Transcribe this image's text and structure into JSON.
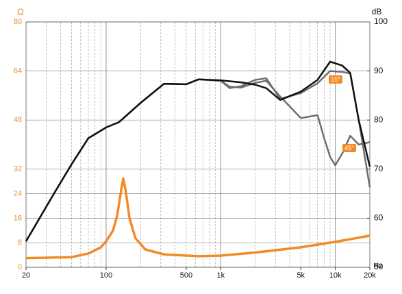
{
  "chart_data": {
    "type": "line",
    "x_label": "Hz",
    "y_label": "Ω",
    "y2_label": "dB",
    "xscale": "log",
    "xlim": [
      20,
      20000
    ],
    "xticks": [
      20,
      100,
      500,
      {
        "value": 1000,
        "label": "1k"
      },
      {
        "value": 5000,
        "label": "5k"
      },
      {
        "value": 10000,
        "label": "10k"
      },
      {
        "value": 20000,
        "label": "20k"
      }
    ],
    "ylim": [
      0,
      80
    ],
    "yticks": [
      0,
      8,
      16,
      24,
      32,
      48,
      64,
      80
    ],
    "y2lim": [
      50,
      100
    ],
    "y2ticks": [
      50,
      60,
      70,
      80,
      90,
      100
    ],
    "grid": true,
    "series": [
      {
        "color": "#f28a26",
        "axis": "y",
        "x": [
          20,
          50,
          70,
          90,
          100,
          115,
          125,
          135,
          141,
          148,
          160,
          180,
          220,
          320,
          640,
          1000,
          2000,
          5000,
          10000,
          20000
        ],
        "values": [
          3,
          3.3,
          4.5,
          6.5,
          8.5,
          12,
          17,
          25,
          29,
          25,
          16,
          9.5,
          5.8,
          4.2,
          3.6,
          3.8,
          4.8,
          6.5,
          8.3,
          10.3
        ]
      },
      {
        "color": "#6e6e6e",
        "axis": "y2",
        "name": "45°",
        "x": [
          20,
          35,
          50,
          70,
          100,
          130,
          200,
          320,
          500,
          640,
          1000,
          1200,
          1500,
          2000,
          2500,
          3300,
          5000,
          7000,
          8000,
          9000,
          10000,
          11500,
          13500,
          16000,
          20000
        ],
        "values": [
          55.3,
          65,
          71,
          76.3,
          78.5,
          79.6,
          83.5,
          87.4,
          87.3,
          88.3,
          88,
          86.8,
          86.6,
          87.6,
          88,
          84.8,
          80.4,
          81,
          76.3,
          72.5,
          70.8,
          73.2,
          76.8,
          75,
          75.5
        ]
      },
      {
        "color": "#6e6e6e",
        "axis": "y2",
        "name": "15°",
        "x": [
          20,
          35,
          50,
          70,
          100,
          130,
          200,
          320,
          500,
          640,
          1000,
          1200,
          1500,
          2000,
          2500,
          3300,
          5000,
          7000,
          9000,
          11500,
          13500,
          16000,
          20000
        ],
        "values": [
          55.3,
          65,
          71,
          76.3,
          78.5,
          79.6,
          83.5,
          87.4,
          87.3,
          88.3,
          88,
          86.5,
          86.9,
          88.2,
          88.5,
          84.3,
          85.5,
          87.5,
          90,
          89.8,
          89.5,
          80,
          66.3
        ]
      },
      {
        "color": "#111111",
        "axis": "y2",
        "x": [
          20,
          35,
          50,
          70,
          100,
          130,
          200,
          320,
          500,
          640,
          1000,
          1500,
          2000,
          2500,
          3300,
          5000,
          7000,
          9000,
          11500,
          13500,
          16000,
          20000
        ],
        "values": [
          55.3,
          65,
          71,
          76.3,
          78.5,
          79.6,
          83.5,
          87.4,
          87.3,
          88.3,
          88.1,
          87.7,
          87.2,
          86.5,
          84.1,
          85.8,
          88.2,
          91.9,
          91.1,
          89.6,
          80,
          70.5
        ]
      }
    ]
  }
}
